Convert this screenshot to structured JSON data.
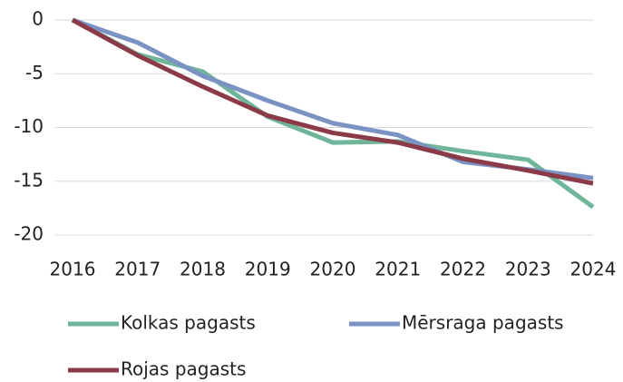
{
  "chart_data": {
    "type": "line",
    "categories": [
      "2016",
      "2017",
      "2018",
      "2019",
      "2020",
      "2021",
      "2022",
      "2023",
      "2024"
    ],
    "series": [
      {
        "name": "Kolkas pagasts",
        "color": "#6fb59a",
        "values": [
          0,
          -3.2,
          -4.8,
          -9.0,
          -11.4,
          -11.3,
          -12.2,
          -13.0,
          -17.4
        ]
      },
      {
        "name": "Mērsraga pagasts",
        "color": "#7b93c4",
        "values": [
          0,
          -2.1,
          -5.2,
          -7.5,
          -9.6,
          -10.7,
          -13.2,
          -13.9,
          -14.7
        ]
      },
      {
        "name": "Rojas pagasts",
        "color": "#8b3a48",
        "values": [
          0,
          -3.3,
          -6.2,
          -8.9,
          -10.5,
          -11.4,
          -12.9,
          -14.0,
          -15.2
        ]
      }
    ],
    "ylim": [
      -20,
      0
    ],
    "yticks": [
      0,
      -5,
      -10,
      -15,
      -20
    ],
    "grid": true
  }
}
